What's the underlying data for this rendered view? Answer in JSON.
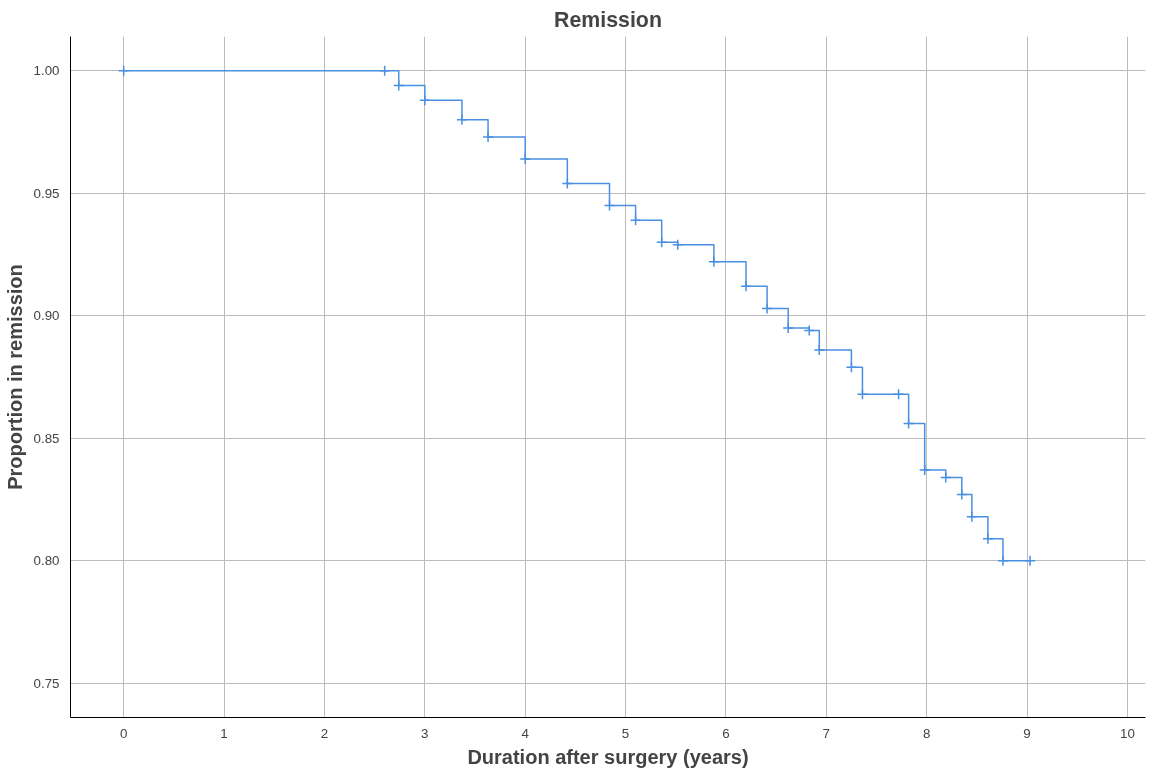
{
  "chart_data": {
    "type": "step",
    "title": "Remission",
    "xlabel": "Duration after surgery (years)",
    "ylabel": "Proportion in remission",
    "x": [
      0,
      2.6,
      2.74,
      3.0,
      3.37,
      3.63,
      4.0,
      4.42,
      4.84,
      5.1,
      5.36,
      5.52,
      5.88,
      6.2,
      6.41,
      6.62,
      6.83,
      6.93,
      7.25,
      7.36,
      7.72,
      7.82,
      7.98,
      8.19,
      8.35,
      8.45,
      8.61,
      8.76,
      9.03
    ],
    "series": [
      {
        "color": "#4a90e2",
        "values": [
          1.0,
          1.0,
          0.994,
          0.988,
          0.98,
          0.973,
          0.964,
          0.954,
          0.945,
          0.939,
          0.93,
          0.929,
          0.922,
          0.912,
          0.903,
          0.895,
          0.894,
          0.886,
          0.879,
          0.868,
          0.868,
          0.856,
          0.837,
          0.834,
          0.827,
          0.818,
          0.809,
          0.8,
          0.8
        ]
      }
    ],
    "xlim": [
      -0.53,
      10.18
    ],
    "ylim": [
      0.736,
      1.014
    ],
    "xticks": [
      0,
      1,
      2,
      3,
      4,
      5,
      6,
      7,
      8,
      9,
      10
    ],
    "yticks": [
      {
        "value": 0.75,
        "label": "0.75"
      },
      {
        "value": 0.8,
        "label": "0.80"
      },
      {
        "value": 0.85,
        "label": "0.85"
      },
      {
        "value": 0.9,
        "label": "0.90"
      },
      {
        "value": 0.95,
        "label": "0.95"
      },
      {
        "value": 1.0,
        "label": "1.00"
      }
    ],
    "grid": true,
    "marker": "cross"
  }
}
